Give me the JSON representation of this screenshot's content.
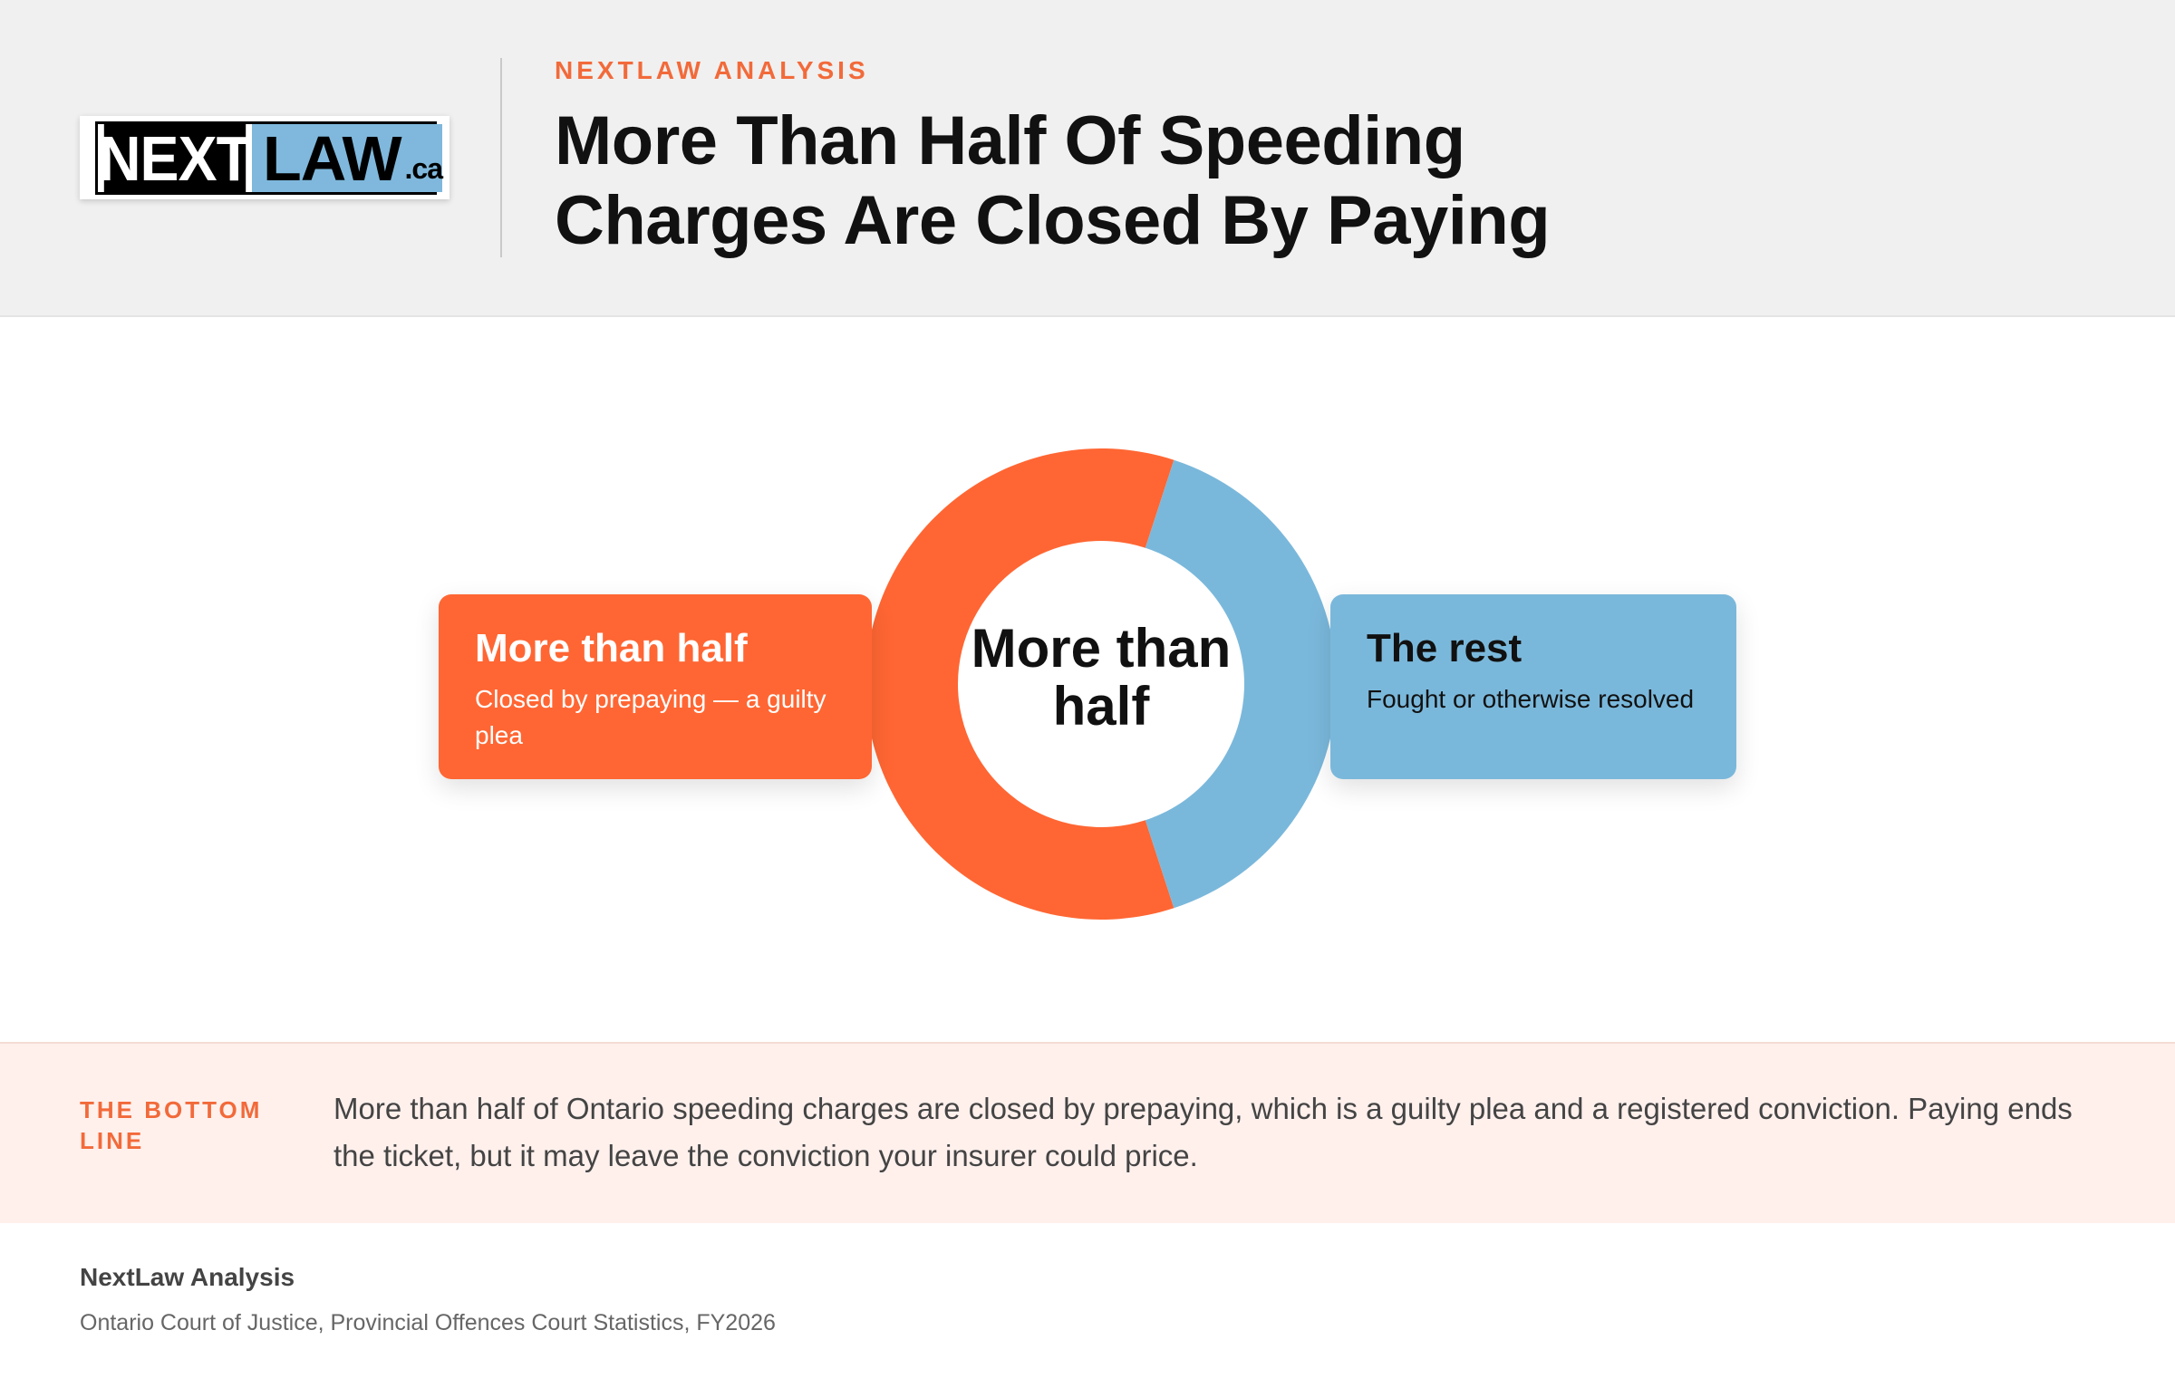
{
  "header": {
    "logo": {
      "left": "NEXT",
      "right": "LAW",
      "suffix": ".ca"
    },
    "kicker": "NEXTLAW ANALYSIS",
    "title": "More Than Half Of Speeding Charges Are Closed By Paying"
  },
  "colors": {
    "accent": "#ff6633",
    "blue": "#7ab8db",
    "header_bg": "#f0f0f0",
    "bottom_bg": "#fff0ec"
  },
  "chart_data": {
    "type": "pie",
    "title": "More Than Half Of Speeding Charges Are Closed By Paying",
    "center_label": "More than half",
    "series": [
      {
        "name": "More than half",
        "value": 0.6,
        "description": "Closed by prepaying — a guilty plea",
        "color": "#ff6633"
      },
      {
        "name": "The rest",
        "value": 0.4,
        "description": "Fought or otherwise resolved",
        "color": "#7ab8db"
      }
    ]
  },
  "bottom_line": {
    "label": "THE BOTTOM LINE",
    "text": "More than half of Ontario speeding charges are closed by prepaying, which is a guilty plea and a registered conviction. Paying ends the ticket, but it may leave the conviction your insurer could price."
  },
  "footer": {
    "title": "NextLaw Analysis",
    "source": "Ontario Court of Justice, Provincial Offences Court Statistics, FY2026"
  }
}
